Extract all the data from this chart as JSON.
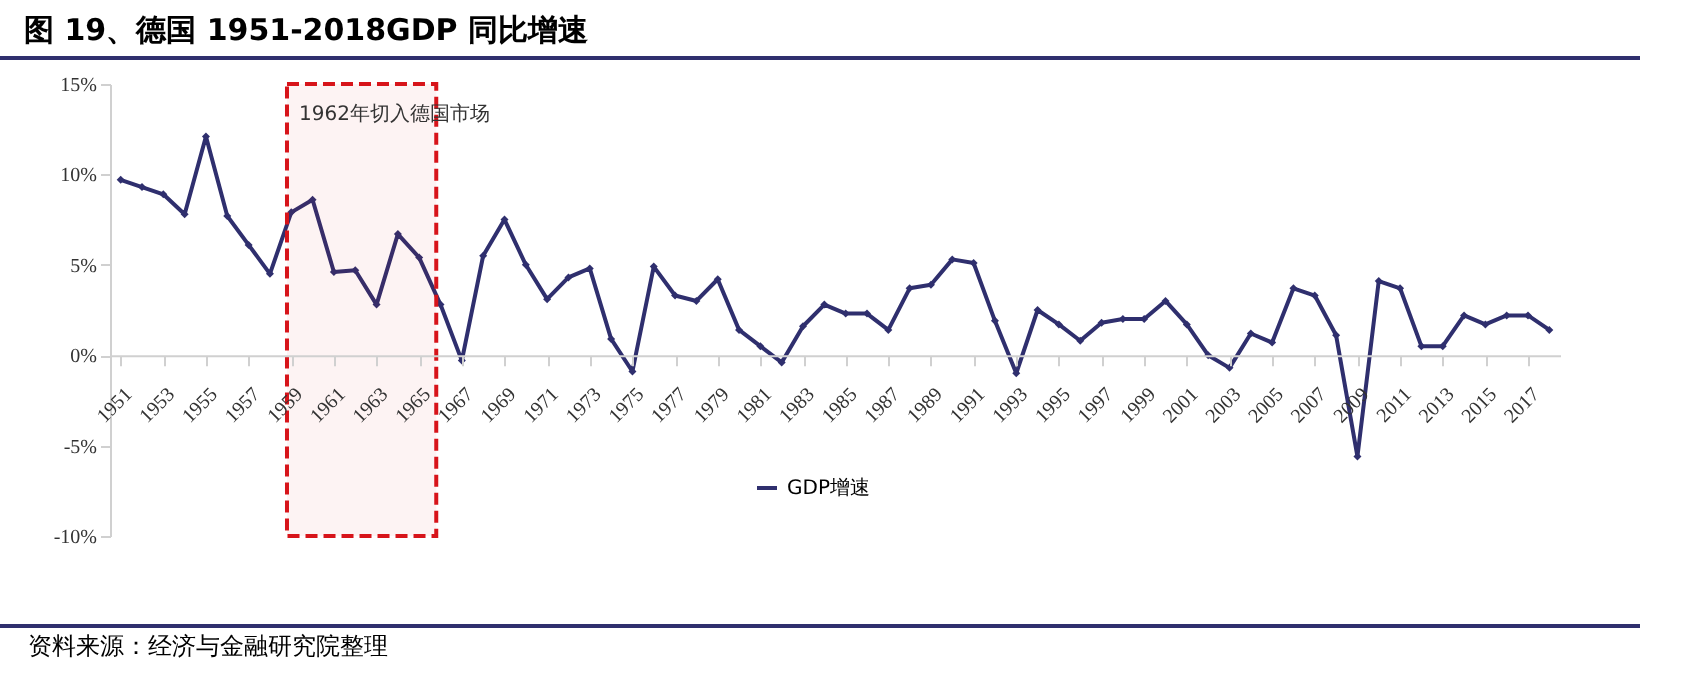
{
  "chart_data": {
    "type": "line",
    "title": "图 19、德国 1951-2018GDP 同比增速",
    "x": [
      1951,
      1952,
      1953,
      1954,
      1955,
      1956,
      1957,
      1958,
      1959,
      1960,
      1961,
      1962,
      1963,
      1964,
      1965,
      1966,
      1967,
      1968,
      1969,
      1970,
      1971,
      1972,
      1973,
      1974,
      1975,
      1976,
      1977,
      1978,
      1979,
      1980,
      1981,
      1982,
      1983,
      1984,
      1985,
      1986,
      1987,
      1988,
      1989,
      1990,
      1991,
      1992,
      1993,
      1994,
      1995,
      1996,
      1997,
      1998,
      1999,
      2000,
      2001,
      2002,
      2003,
      2004,
      2005,
      2006,
      2007,
      2008,
      2009,
      2010,
      2011,
      2012,
      2013,
      2014,
      2015,
      2016,
      2017,
      2018
    ],
    "series": [
      {
        "name": "GDP增速",
        "color": "#2f2f6e",
        "values": [
          9.7,
          9.3,
          8.9,
          7.8,
          12.1,
          7.7,
          6.1,
          4.5,
          7.9,
          8.6,
          4.6,
          4.7,
          2.8,
          6.7,
          5.4,
          2.8,
          -0.3,
          5.5,
          7.5,
          5.0,
          3.1,
          4.3,
          4.8,
          0.9,
          -0.9,
          4.9,
          3.3,
          3.0,
          4.2,
          1.4,
          0.5,
          -0.4,
          1.6,
          2.8,
          2.3,
          2.3,
          1.4,
          3.7,
          3.9,
          5.3,
          5.1,
          1.9,
          -1.0,
          2.5,
          1.7,
          0.8,
          1.8,
          2.0,
          2.0,
          3.0,
          1.7,
          0.0,
          -0.7,
          1.2,
          0.7,
          3.7,
          3.3,
          1.1,
          -5.6,
          4.1,
          3.7,
          0.5,
          0.5,
          2.2,
          1.7,
          2.2,
          2.2,
          1.4
        ]
      }
    ],
    "xlim": [
      1950.5,
      2018.5
    ],
    "xticks": [
      1951,
      1953,
      1955,
      1957,
      1959,
      1961,
      1963,
      1965,
      1967,
      1969,
      1971,
      1973,
      1975,
      1977,
      1979,
      1981,
      1983,
      1985,
      1987,
      1989,
      1991,
      1993,
      1995,
      1997,
      1999,
      2001,
      2003,
      2005,
      2007,
      2009,
      2011,
      2013,
      2015,
      2017
    ],
    "ylim": [
      -10,
      15
    ],
    "yticks": [
      {
        "value": -10,
        "label": "-10%"
      },
      {
        "value": -5,
        "label": "-5%"
      },
      {
        "value": 0,
        "label": "0%"
      },
      {
        "value": 5,
        "label": "5%"
      },
      {
        "value": 10,
        "label": "10%"
      },
      {
        "value": 15,
        "label": "15%"
      }
    ],
    "bands": [
      {
        "axis": "x",
        "from": 1958.8,
        "to": 1965.8,
        "label": "1962年切入德国市场",
        "color": "#d7141a"
      }
    ],
    "annotations": [
      "资料来源：经济与金融研究院整理"
    ],
    "marker": "diamond",
    "line_style": "solid",
    "legend": "bottom",
    "grid": false
  }
}
